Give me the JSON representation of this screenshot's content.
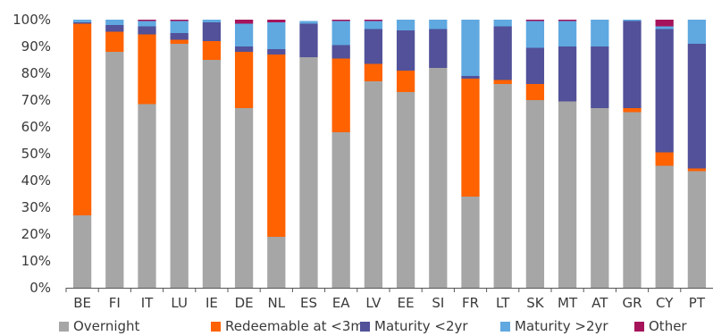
{
  "chart_data": {
    "type": "bar",
    "stacked": true,
    "categories": [
      "BE",
      "FI",
      "IT",
      "LU",
      "IE",
      "DE",
      "NL",
      "ES",
      "EA",
      "LV",
      "EE",
      "SI",
      "FR",
      "LT",
      "SK",
      "MT",
      "AT",
      "GR",
      "CY",
      "PT"
    ],
    "series": [
      {
        "name": "Overnight",
        "color": "#a6a6a6",
        "values": [
          27,
          88,
          68.5,
          91,
          85,
          67,
          19,
          86,
          58,
          77,
          73,
          82,
          34,
          76,
          70,
          69.5,
          67,
          65.5,
          45.5,
          43.5
        ]
      },
      {
        "name": "Redeemable at <3m",
        "color": "#ff6200",
        "values": [
          71.5,
          7.5,
          26,
          1.5,
          7,
          21,
          68,
          0,
          27.5,
          6.5,
          8,
          0,
          44,
          1.5,
          6,
          0,
          0,
          1.5,
          5,
          1
        ]
      },
      {
        "name": "Maturity <2yr",
        "color": "#525199",
        "values": [
          0.5,
          2.5,
          3,
          2.5,
          7,
          2,
          2,
          12.5,
          5,
          13,
          15,
          14.5,
          1,
          20,
          13.5,
          20.5,
          23,
          32.5,
          46,
          46.5
        ]
      },
      {
        "name": "Maturity >2yr",
        "color": "#5fa8e0",
        "values": [
          1,
          2,
          2,
          4.5,
          1,
          8.5,
          10,
          1,
          9,
          3,
          4,
          3.5,
          21,
          2.5,
          10,
          9.5,
          10,
          0.5,
          1,
          9
        ]
      },
      {
        "name": "Other",
        "color": "#a5145b",
        "values": [
          0,
          0,
          0.5,
          0.5,
          0,
          1.5,
          1,
          0,
          0.5,
          0.5,
          0,
          0,
          0,
          0,
          0.5,
          0.5,
          0,
          0,
          2.5,
          0
        ]
      }
    ],
    "ylim": [
      0,
      100
    ],
    "yticks": [
      "0%",
      "10%",
      "20%",
      "30%",
      "40%",
      "50%",
      "60%",
      "70%",
      "80%",
      "90%",
      "100%"
    ],
    "grid": false,
    "legend_position": "bottom",
    "title": "",
    "xlabel": "",
    "ylabel": ""
  }
}
